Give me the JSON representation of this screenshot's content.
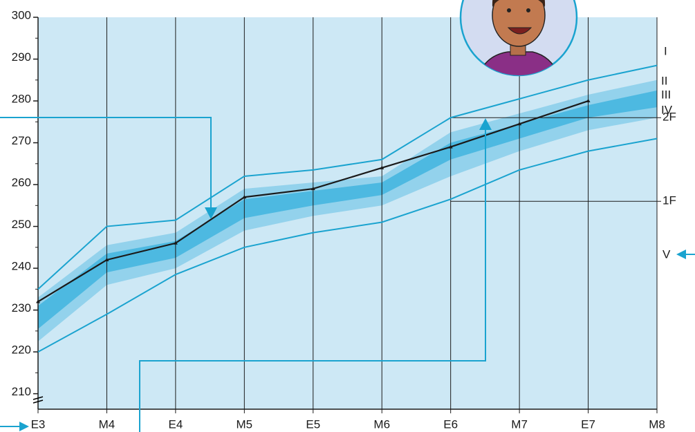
{
  "chart_data": {
    "type": "line",
    "categories": [
      "E3",
      "M4",
      "E4",
      "M5",
      "E5",
      "M6",
      "E6",
      "M7",
      "E7",
      "M8"
    ],
    "ylim": [
      206.3,
      300
    ],
    "yticks": [
      210,
      220,
      230,
      240,
      250,
      260,
      270,
      280,
      290,
      300
    ],
    "grid": true,
    "background": "#cde8f5",
    "bands": [
      {
        "color": "#93d2ec",
        "upper": [
          233,
          245.5,
          248.5,
          259,
          260.5,
          262,
          272.5,
          277,
          281.5,
          285
        ],
        "lower": [
          222.5,
          236,
          240,
          249,
          252.5,
          255,
          262,
          268,
          273,
          276
        ]
      },
      {
        "color": "#4db9e1",
        "upper": [
          231,
          243.5,
          246.5,
          256.5,
          258.5,
          260.5,
          270,
          274.5,
          279,
          282.5
        ],
        "lower": [
          225.5,
          239,
          242.5,
          252,
          255,
          257.5,
          266,
          271,
          276,
          278.5
        ]
      }
    ],
    "band_labels": [
      "II",
      "III",
      "IV"
    ],
    "series": [
      {
        "name": "I",
        "color": "#1aa3cf",
        "values": [
          235,
          250,
          251.5,
          262,
          263.5,
          266,
          276,
          280.5,
          285,
          288.5
        ]
      },
      {
        "name": "V",
        "color": "#1aa3cf",
        "values": [
          220,
          229,
          238.5,
          245,
          248.5,
          251,
          256.5,
          263.5,
          268,
          271
        ]
      },
      {
        "color": "#1a1a1a",
        "values": [
          232,
          242,
          246,
          257,
          259,
          264,
          269,
          274.5,
          280,
          null
        ]
      }
    ],
    "reference_lines": [
      {
        "value": 276,
        "label": "2F"
      },
      {
        "value": 256,
        "label": "1F"
      }
    ]
  }
}
